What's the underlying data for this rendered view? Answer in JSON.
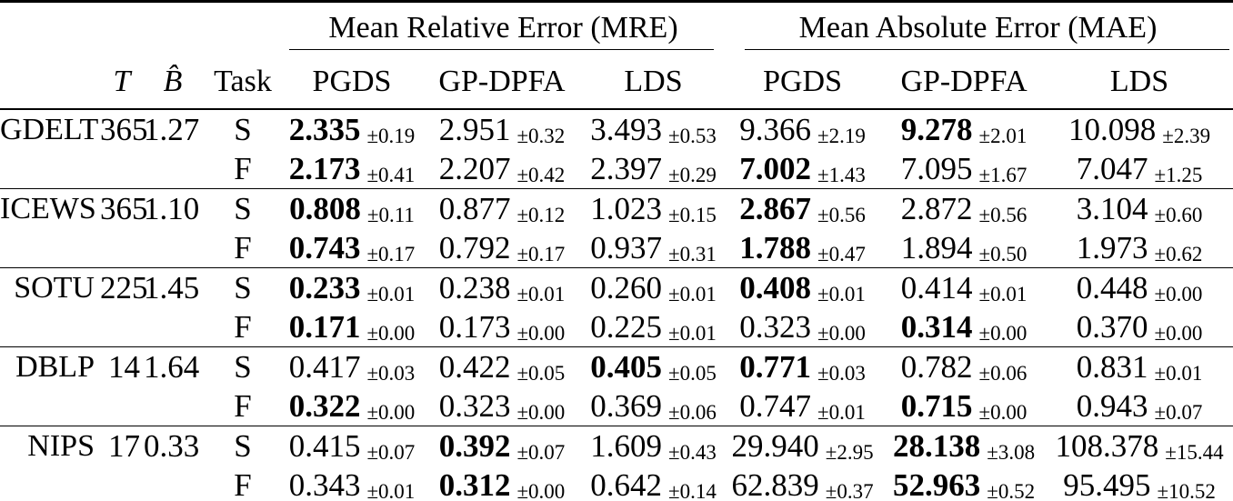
{
  "table": {
    "spanners": [
      {
        "label": "Mean Relative Error (MRE)"
      },
      {
        "label": "Mean Absolute Error (MAE)"
      }
    ],
    "columns": [
      {
        "label": ""
      },
      {
        "label": "T"
      },
      {
        "label": "B̂"
      },
      {
        "label": "Task"
      },
      {
        "label": "PGDS"
      },
      {
        "label": "GP-DPFA"
      },
      {
        "label": "LDS"
      },
      {
        "label": "PGDS"
      },
      {
        "label": "GP-DPFA"
      },
      {
        "label": "LDS"
      }
    ],
    "groups": [
      {
        "dataset": "GDELT",
        "T": "365",
        "B_hat": "1.27",
        "rows": [
          {
            "task": "S",
            "values": [
              {
                "v": "2.335",
                "pm": "±0.19",
                "bold": true
              },
              {
                "v": "2.951",
                "pm": "±0.32",
                "bold": false
              },
              {
                "v": "3.493",
                "pm": "±0.53",
                "bold": false
              },
              {
                "v": "9.366",
                "pm": "±2.19",
                "bold": false
              },
              {
                "v": "9.278",
                "pm": "±2.01",
                "bold": true
              },
              {
                "v": "10.098",
                "pm": "±2.39",
                "bold": false
              }
            ]
          },
          {
            "task": "F",
            "values": [
              {
                "v": "2.173",
                "pm": "±0.41",
                "bold": true
              },
              {
                "v": "2.207",
                "pm": "±0.42",
                "bold": false
              },
              {
                "v": "2.397",
                "pm": "±0.29",
                "bold": false
              },
              {
                "v": "7.002",
                "pm": "±1.43",
                "bold": true
              },
              {
                "v": "7.095",
                "pm": "±1.67",
                "bold": false
              },
              {
                "v": "7.047",
                "pm": "±1.25",
                "bold": false
              }
            ]
          }
        ]
      },
      {
        "dataset": "ICEWS",
        "T": "365",
        "B_hat": "1.10",
        "rows": [
          {
            "task": "S",
            "values": [
              {
                "v": "0.808",
                "pm": "±0.11",
                "bold": true
              },
              {
                "v": "0.877",
                "pm": "±0.12",
                "bold": false
              },
              {
                "v": "1.023",
                "pm": "±0.15",
                "bold": false
              },
              {
                "v": "2.867",
                "pm": "±0.56",
                "bold": true
              },
              {
                "v": "2.872",
                "pm": "±0.56",
                "bold": false
              },
              {
                "v": "3.104",
                "pm": "±0.60",
                "bold": false
              }
            ]
          },
          {
            "task": "F",
            "values": [
              {
                "v": "0.743",
                "pm": "±0.17",
                "bold": true
              },
              {
                "v": "0.792",
                "pm": "±0.17",
                "bold": false
              },
              {
                "v": "0.937",
                "pm": "±0.31",
                "bold": false
              },
              {
                "v": "1.788",
                "pm": "±0.47",
                "bold": true
              },
              {
                "v": "1.894",
                "pm": "±0.50",
                "bold": false
              },
              {
                "v": "1.973",
                "pm": "±0.62",
                "bold": false
              }
            ]
          }
        ]
      },
      {
        "dataset": "SOTU",
        "T": "225",
        "B_hat": "1.45",
        "rows": [
          {
            "task": "S",
            "values": [
              {
                "v": "0.233",
                "pm": "±0.01",
                "bold": true
              },
              {
                "v": "0.238",
                "pm": "±0.01",
                "bold": false
              },
              {
                "v": "0.260",
                "pm": "±0.01",
                "bold": false
              },
              {
                "v": "0.408",
                "pm": "±0.01",
                "bold": true
              },
              {
                "v": "0.414",
                "pm": "±0.01",
                "bold": false
              },
              {
                "v": "0.448",
                "pm": "±0.00",
                "bold": false
              }
            ]
          },
          {
            "task": "F",
            "values": [
              {
                "v": "0.171",
                "pm": "±0.00",
                "bold": true
              },
              {
                "v": "0.173",
                "pm": "±0.00",
                "bold": false
              },
              {
                "v": "0.225",
                "pm": "±0.01",
                "bold": false
              },
              {
                "v": "0.323",
                "pm": "±0.00",
                "bold": false
              },
              {
                "v": "0.314",
                "pm": "±0.00",
                "bold": true
              },
              {
                "v": "0.370",
                "pm": "±0.00",
                "bold": false
              }
            ]
          }
        ]
      },
      {
        "dataset": "DBLP",
        "T": "14",
        "B_hat": "1.64",
        "rows": [
          {
            "task": "S",
            "values": [
              {
                "v": "0.417",
                "pm": "±0.03",
                "bold": false
              },
              {
                "v": "0.422",
                "pm": "±0.05",
                "bold": false
              },
              {
                "v": "0.405",
                "pm": "±0.05",
                "bold": true
              },
              {
                "v": "0.771",
                "pm": "±0.03",
                "bold": true
              },
              {
                "v": "0.782",
                "pm": "±0.06",
                "bold": false
              },
              {
                "v": "0.831",
                "pm": "±0.01",
                "bold": false
              }
            ]
          },
          {
            "task": "F",
            "values": [
              {
                "v": "0.322",
                "pm": "±0.00",
                "bold": true
              },
              {
                "v": "0.323",
                "pm": "±0.00",
                "bold": false
              },
              {
                "v": "0.369",
                "pm": "±0.06",
                "bold": false
              },
              {
                "v": "0.747",
                "pm": "±0.01",
                "bold": false
              },
              {
                "v": "0.715",
                "pm": "±0.00",
                "bold": true
              },
              {
                "v": "0.943",
                "pm": "±0.07",
                "bold": false
              }
            ]
          }
        ]
      },
      {
        "dataset": "NIPS",
        "T": "17",
        "B_hat": "0.33",
        "rows": [
          {
            "task": "S",
            "values": [
              {
                "v": "0.415",
                "pm": "±0.07",
                "bold": false
              },
              {
                "v": "0.392",
                "pm": "±0.07",
                "bold": true
              },
              {
                "v": "1.609",
                "pm": "±0.43",
                "bold": false
              },
              {
                "v": "29.940",
                "pm": "±2.95",
                "bold": false
              },
              {
                "v": "28.138",
                "pm": "±3.08",
                "bold": true
              },
              {
                "v": "108.378",
                "pm": "±15.44",
                "bold": false
              }
            ]
          },
          {
            "task": "F",
            "values": [
              {
                "v": "0.343",
                "pm": "±0.01",
                "bold": false
              },
              {
                "v": "0.312",
                "pm": "±0.00",
                "bold": true
              },
              {
                "v": "0.642",
                "pm": "±0.14",
                "bold": false
              },
              {
                "v": "62.839",
                "pm": "±0.37",
                "bold": false
              },
              {
                "v": "52.963",
                "pm": "±0.52",
                "bold": true
              },
              {
                "v": "95.495",
                "pm": "±10.52",
                "bold": false
              }
            ]
          }
        ]
      }
    ]
  }
}
